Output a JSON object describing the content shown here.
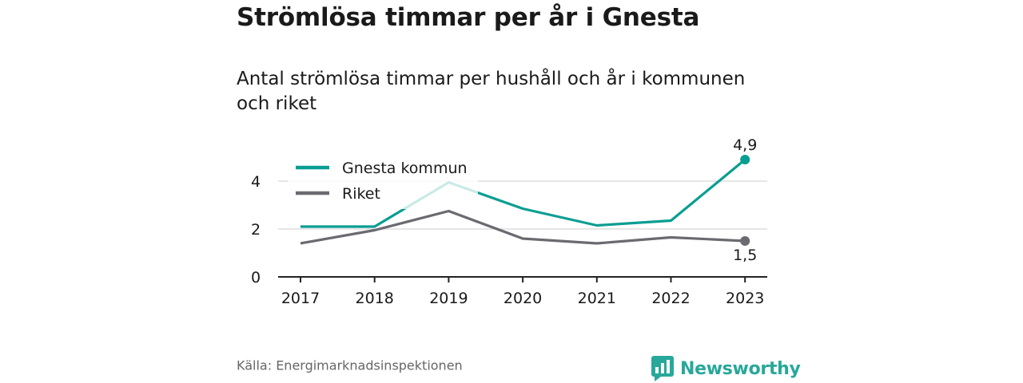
{
  "header": {
    "title": "Strömlösa timmar per år i Gnesta",
    "subtitle": "Antal strömlösa timmar per hushåll och år i kommunen och riket"
  },
  "footer": {
    "source": "Källa: Energimarknadsinspektionen",
    "brand": "Newsworthy",
    "brand_icon": "newsworthy-logo-icon"
  },
  "colors": {
    "gnesta": "#0a9e92",
    "riket": "#6b6a70",
    "gnesta_legend_overlap": "#c8e9e6",
    "brand": "#27a89a"
  },
  "chart_data": {
    "type": "line",
    "x": [
      "2017",
      "2018",
      "2019",
      "2020",
      "2021",
      "2022",
      "2023"
    ],
    "series": [
      {
        "name": "Gnesta kommun",
        "values": [
          2.1,
          2.1,
          3.95,
          2.85,
          2.15,
          2.35,
          4.9
        ],
        "end_label": "4,9"
      },
      {
        "name": "Riket",
        "values": [
          1.4,
          1.95,
          2.75,
          1.6,
          1.4,
          1.65,
          1.5
        ],
        "end_label": "1,5"
      }
    ],
    "yticks": [
      0,
      2,
      4
    ],
    "ytick_labels": [
      "0",
      "2",
      "4"
    ],
    "ylim": [
      0,
      4.9
    ],
    "grid": true,
    "legend": "top-left",
    "xlabel": "",
    "ylabel": ""
  }
}
